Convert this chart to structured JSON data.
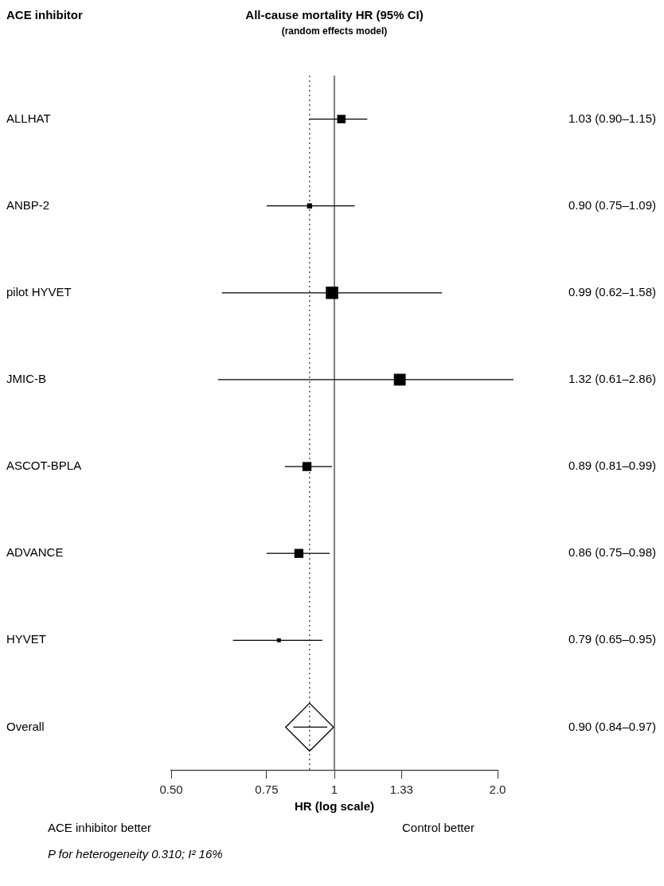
{
  "chart_data": {
    "type": "scatter",
    "orientation": "horizontal",
    "title": "All-cause mortality HR (95% CI)",
    "subtitle": "(random effects model)",
    "xlabel": "HR (log scale)",
    "categories": [
      "ALLHAT",
      "ANBP-2",
      "pilot HYVET",
      "JMIC-B",
      "ASCOT-BPLA",
      "ADVANCE",
      "HYVET",
      "Overall"
    ],
    "series": [
      {
        "type": "bubble",
        "marker": "square",
        "color": "#000000",
        "values": [
          1.03,
          0.9,
          0.99,
          1.32,
          0.89,
          0.86,
          0.79,
          null
        ],
        "sizes": [
          0.46,
          0.17,
          1,
          0.91,
          0.53,
          0.53,
          0.1,
          null
        ],
        "errors": [
          [
            0.9,
            1.15
          ],
          [
            0.75,
            1.09
          ],
          [
            0.62,
            1.58
          ],
          [
            0.61,
            2.86
          ],
          [
            0.81,
            0.99
          ],
          [
            0.75,
            0.98
          ],
          [
            0.65,
            0.95
          ],
          null
        ]
      },
      {
        "type": "scatter",
        "marker": "diamond",
        "color": "#000000",
        "values": [
          null,
          null,
          null,
          null,
          null,
          null,
          null,
          0.9
        ],
        "errors": [
          null,
          null,
          null,
          null,
          null,
          null,
          null,
          [
            0.84,
            0.97
          ]
        ]
      }
    ],
    "value_labels": [
      "1.03 (0.90–1.15)",
      "0.90 (0.75–1.09)",
      "0.99 (0.62–1.58)",
      "1.32 (0.61–2.86)",
      "0.89 (0.81–0.99)",
      "0.86 (0.75–0.98)",
      "0.79 (0.65–0.95)",
      "0.90 (0.84–0.97)"
    ],
    "log": "x",
    "xlim": [
      0.5,
      2.0
    ],
    "xticks": [
      {
        "value": 0.5,
        "label": "0.50"
      },
      0.75,
      1,
      1.33,
      {
        "value": 2.0,
        "label": "2.0"
      }
    ],
    "ref_lines": [
      {
        "axis": "x",
        "value": 1,
        "line_style": "solid",
        "color": "#555555"
      },
      {
        "axis": "x",
        "value": 0.9,
        "line_style": "dotted",
        "color": "#555555"
      }
    ],
    "annotations": [
      "ACE inhibitor",
      "ACE inhibitor better",
      "Control better",
      "P for heterogeneity 0.310; I² 16%"
    ],
    "grid": false,
    "legend": false
  }
}
